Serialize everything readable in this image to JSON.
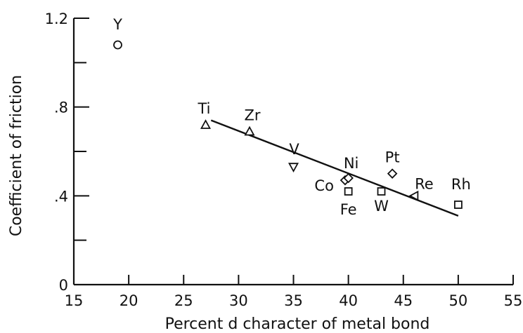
{
  "chart_data": {
    "type": "scatter",
    "title": "",
    "xlabel": "Percent d character of metal bond",
    "ylabel": "Coefficient of friction",
    "xlim": [
      15,
      55
    ],
    "ylim": [
      0,
      1.2
    ],
    "grid": false,
    "x_ticks": [
      15,
      20,
      25,
      30,
      35,
      40,
      45,
      50,
      55
    ],
    "x_tick_labels": [
      "15",
      "20",
      "25",
      "30",
      "35",
      "40",
      "45",
      "50",
      "55"
    ],
    "y_ticks": [
      0,
      0.4,
      0.8,
      1.2
    ],
    "y_tick_labels": [
      "0",
      ".4",
      ".8",
      "1.2"
    ],
    "y_minor_ticks": [
      0.2,
      0.6,
      1.0
    ],
    "points": [
      {
        "label": "Y",
        "x": 19.0,
        "y": 1.08,
        "marker": "circle"
      },
      {
        "label": "Ti",
        "x": 27.0,
        "y": 0.72,
        "marker": "triangle-up"
      },
      {
        "label": "Zr",
        "x": 31.0,
        "y": 0.69,
        "marker": "triangle-up"
      },
      {
        "label": "V",
        "x": 35.0,
        "y": 0.53,
        "marker": "triangle-down"
      },
      {
        "label": "Co",
        "x": 39.7,
        "y": 0.47,
        "marker": "diamond"
      },
      {
        "label": "Ni",
        "x": 40.0,
        "y": 0.48,
        "marker": "diamond"
      },
      {
        "label": "Fe",
        "x": 40.0,
        "y": 0.42,
        "marker": "square"
      },
      {
        "label": "W",
        "x": 43.0,
        "y": 0.42,
        "marker": "square"
      },
      {
        "label": "Pt",
        "x": 44.0,
        "y": 0.5,
        "marker": "diamond"
      },
      {
        "label": "Re",
        "x": 46.0,
        "y": 0.4,
        "marker": "triangle-left"
      },
      {
        "label": "Rh",
        "x": 50.0,
        "y": 0.36,
        "marker": "square"
      }
    ],
    "trendline": {
      "x": [
        27.5,
        50.0
      ],
      "y": [
        0.74,
        0.31
      ]
    }
  }
}
